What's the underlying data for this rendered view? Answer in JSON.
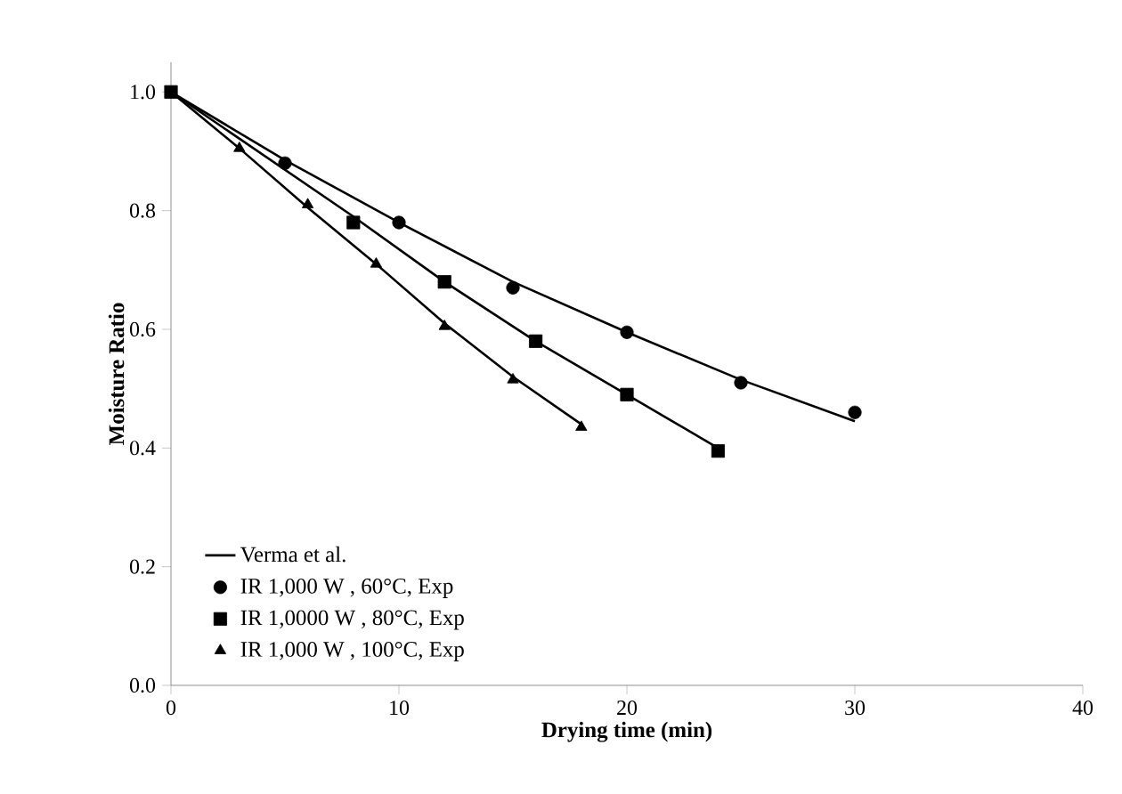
{
  "chart_data": {
    "type": "scatter",
    "xlabel": "Drying time (min)",
    "ylabel": "Moisture Ratio",
    "xlim": [
      0,
      40
    ],
    "ylim": [
      0,
      1.05
    ],
    "xticks": [
      0,
      10,
      20,
      30,
      40
    ],
    "yticks": [
      {
        "value": 0,
        "label": "0.0"
      },
      0.2,
      0.4,
      0.6,
      0.8,
      {
        "value": 1,
        "label": "1.0"
      }
    ],
    "grid": false,
    "legend": "bottom left",
    "series": [
      {
        "name": "Verma et al.",
        "type": "line",
        "marker": "none",
        "line_style": "solid",
        "color": "#000000",
        "x": [
          0,
          5,
          10,
          15,
          20,
          25,
          30
        ],
        "values": [
          1,
          0.885,
          0.78,
          0.68,
          0.595,
          0.515,
          0.445
        ]
      },
      {
        "type": "line",
        "marker": "none",
        "line_style": "solid",
        "color": "#000000",
        "x": [
          0,
          8,
          12,
          16,
          20,
          24
        ],
        "values": [
          1,
          0.79,
          0.68,
          0.58,
          0.49,
          0.4
        ]
      },
      {
        "type": "line",
        "marker": "none",
        "line_style": "solid",
        "color": "#000000",
        "x": [
          0,
          3,
          6,
          9,
          12,
          15,
          18
        ],
        "values": [
          1,
          0.905,
          0.805,
          0.71,
          0.61,
          0.52,
          0.44
        ]
      },
      {
        "name": "IR 1,000 W , 60°C, Exp",
        "marker": "circle",
        "color": "#000000",
        "x": [
          5,
          10,
          15,
          20,
          25,
          30
        ],
        "values": [
          0.88,
          0.78,
          0.67,
          0.595,
          0.51,
          0.46
        ]
      },
      {
        "name": "IR 1,0000 W , 80°C, Exp",
        "marker": "square",
        "color": "#000000",
        "x": [
          0,
          8,
          12,
          16,
          20,
          24
        ],
        "values": [
          1,
          0.78,
          0.68,
          0.58,
          0.49,
          0.395
        ]
      },
      {
        "name": "IR 1,000 W , 100°C, Exp",
        "marker": "triangle",
        "color": "#000000",
        "x": [
          3,
          6,
          9,
          12,
          15,
          18
        ],
        "values": [
          0.905,
          0.81,
          0.71,
          0.605,
          0.515,
          0.435
        ]
      }
    ]
  }
}
